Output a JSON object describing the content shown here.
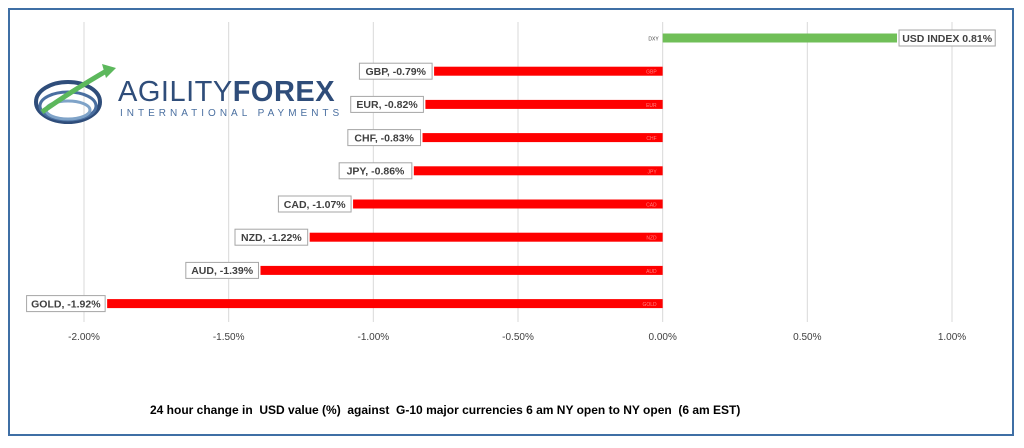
{
  "logo": {
    "name_part1": "AGILITY",
    "name_part2": "FOREX",
    "tagline": "INTERNATIONAL PAYMENTS"
  },
  "caption": "24 hour change in  USD value (%)  against  G-10 major currencies 6 am NY open to NY open  (6 am EST)",
  "colors": {
    "positive": "#70bf58",
    "negative": "#ff0000",
    "grid": "#d9d9d9",
    "frame": "#3f6fa5",
    "label_border": "#a6a6a6"
  },
  "chart_data": {
    "type": "bar",
    "orientation": "horizontal",
    "categories": [
      "DXY",
      "GBP",
      "EUR",
      "CHF",
      "JPY",
      "CAD",
      "NZD",
      "AUD",
      "GOLD"
    ],
    "values": [
      0.81,
      -0.79,
      -0.82,
      -0.83,
      -0.86,
      -1.07,
      -1.22,
      -1.39,
      -1.92
    ],
    "data_labels": [
      "USD INDEX 0.81%",
      "GBP, -0.79%",
      "EUR, -0.82%",
      "CHF, -0.83%",
      "JPY, -0.86%",
      "CAD, -1.07%",
      "NZD, -1.22%",
      "AUD, -1.39%",
      "GOLD, -1.92%"
    ],
    "xlim": [
      -2.0,
      1.0
    ],
    "x_ticks": [
      -2.0,
      -1.5,
      -1.0,
      -0.5,
      0.0,
      0.5,
      1.0
    ],
    "x_tick_labels": [
      "-2.00%",
      "-1.50%",
      "-1.00%",
      "-0.50%",
      "0.00%",
      "0.50%",
      "1.00%"
    ],
    "grid": "vertical"
  }
}
